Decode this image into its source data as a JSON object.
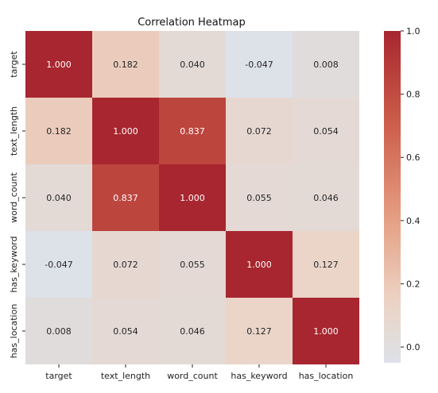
{
  "chart_data": {
    "type": "heatmap",
    "title": "Correlation Heatmap",
    "row_labels": [
      "target",
      "text_length",
      "word_count",
      "has_keyword",
      "has_location"
    ],
    "col_labels": [
      "target",
      "text_length",
      "word_count",
      "has_keyword",
      "has_location"
    ],
    "values": [
      [
        1.0,
        0.182,
        0.04,
        -0.047,
        0.008
      ],
      [
        0.182,
        1.0,
        0.837,
        0.072,
        0.054
      ],
      [
        0.04,
        0.837,
        1.0,
        0.055,
        0.046
      ],
      [
        -0.047,
        0.072,
        0.055,
        1.0,
        0.127
      ],
      [
        0.008,
        0.054,
        0.046,
        0.127,
        1.0
      ]
    ],
    "value_format": "3 decimals",
    "colormap": "coolwarm",
    "vmin": -0.05,
    "vmax": 1.0,
    "colorbar": {
      "ticks": [
        0.0,
        0.2,
        0.4,
        0.6,
        0.8,
        1.0
      ],
      "tick_labels": [
        "0.0",
        "0.2",
        "0.4",
        "0.6",
        "0.8",
        "1.0"
      ],
      "placement": "right"
    },
    "colors": {
      "low": "#dde1e9",
      "mid": "#e4d9d1",
      "high": "#a8262f"
    }
  }
}
